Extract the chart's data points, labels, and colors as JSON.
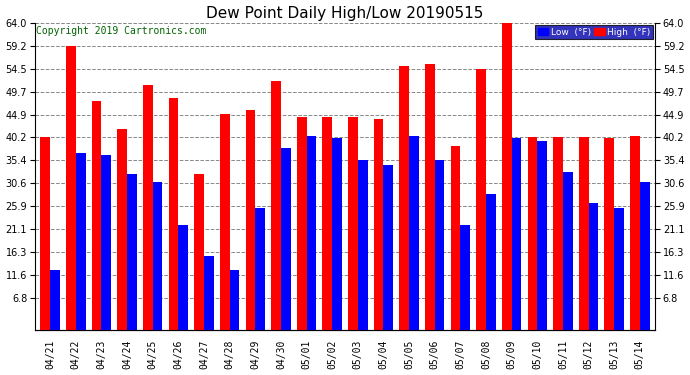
{
  "title": "Dew Point Daily High/Low 20190515",
  "copyright": "Copyright 2019 Cartronics.com",
  "legend_low": "Low  (°F)",
  "legend_high": "High  (°F)",
  "dates": [
    "04/21",
    "04/22",
    "04/23",
    "04/24",
    "04/25",
    "04/26",
    "04/27",
    "04/28",
    "04/29",
    "04/30",
    "05/01",
    "05/02",
    "05/03",
    "05/04",
    "05/05",
    "05/06",
    "05/07",
    "05/08",
    "05/09",
    "05/10",
    "05/11",
    "05/12",
    "05/13",
    "05/14"
  ],
  "high": [
    40.2,
    59.2,
    47.8,
    42.0,
    51.2,
    48.5,
    32.5,
    45.0,
    46.0,
    52.0,
    44.5,
    44.5,
    44.5,
    44.0,
    55.0,
    55.5,
    38.5,
    54.5,
    64.0,
    40.2,
    40.2,
    40.2,
    40.0,
    40.5
  ],
  "low": [
    12.5,
    37.0,
    36.5,
    32.5,
    31.0,
    22.0,
    15.5,
    12.5,
    25.5,
    38.0,
    40.5,
    40.0,
    35.5,
    34.5,
    40.5,
    35.5,
    22.0,
    28.5,
    40.0,
    39.5,
    33.0,
    26.5,
    25.5,
    31.0
  ],
  "ylim": [
    6.8,
    64.0
  ],
  "yticks": [
    6.8,
    11.6,
    16.3,
    21.1,
    25.9,
    30.6,
    35.4,
    40.2,
    44.9,
    49.7,
    54.5,
    59.2,
    64.0
  ],
  "bar_width": 0.38,
  "high_color": "#FF0000",
  "low_color": "#0000FF",
  "background_color": "#FFFFFF",
  "plot_bg_color": "#FFFFFF",
  "grid_color": "#888888",
  "title_fontsize": 11,
  "tick_fontsize": 7,
  "copyright_color": "#006400",
  "copyright_fontsize": 7
}
